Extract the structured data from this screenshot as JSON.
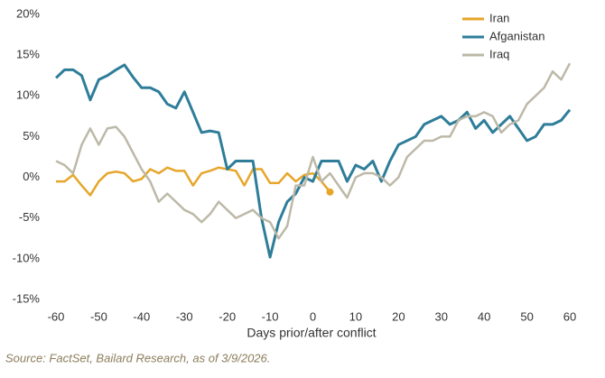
{
  "chart_data": {
    "type": "line",
    "x": [
      -60,
      -58,
      -56,
      -54,
      -52,
      -50,
      -48,
      -46,
      -44,
      -42,
      -40,
      -38,
      -36,
      -34,
      -32,
      -30,
      -28,
      -26,
      -24,
      -22,
      -20,
      -18,
      -16,
      -14,
      -12,
      -10,
      -8,
      -6,
      -4,
      -2,
      0,
      2,
      4,
      6,
      8,
      10,
      12,
      14,
      16,
      18,
      20,
      22,
      24,
      26,
      28,
      30,
      32,
      34,
      36,
      38,
      40,
      42,
      44,
      46,
      48,
      50,
      52,
      54,
      56,
      58,
      60
    ],
    "series": [
      {
        "name": "Iran",
        "color": "#e6a62a",
        "values": [
          -0.5,
          -0.5,
          0.3,
          -1,
          -2.2,
          -0.5,
          0.5,
          0.7,
          0.5,
          -0.5,
          -0.2,
          1,
          0.5,
          1.2,
          0.8,
          0.8,
          -1,
          0.5,
          0.8,
          1.2,
          1,
          0.8,
          -1,
          1,
          1,
          -0.7,
          -0.7,
          0.5,
          -0.5,
          0.3,
          0.5,
          -0.5,
          -1.8,
          null,
          null,
          null,
          null,
          null,
          null,
          null,
          null,
          null,
          null,
          null,
          null,
          null,
          null,
          null,
          null,
          null,
          null,
          null,
          null,
          null,
          null,
          null,
          null,
          null,
          null,
          null,
          null
        ]
      },
      {
        "name": "Afganistan",
        "color": "#2e7d99",
        "values": [
          12.2,
          13.2,
          13.2,
          12.5,
          9.5,
          12,
          12.5,
          13.2,
          13.8,
          12.3,
          11,
          11,
          10.5,
          9,
          8.5,
          10.5,
          8,
          5.5,
          5.7,
          5.5,
          1,
          2,
          2,
          2,
          -5,
          -9.8,
          -5.5,
          -3,
          -2,
          0,
          -0.5,
          2,
          2,
          2,
          -0.5,
          1.5,
          1,
          2,
          -0.5,
          2,
          4,
          4.5,
          5,
          6.5,
          7,
          7.5,
          6.5,
          7,
          8,
          6,
          7,
          5.5,
          6.5,
          7.5,
          6,
          4.5,
          5,
          6.5,
          6.5,
          7,
          8.3
        ]
      },
      {
        "name": "Iraq",
        "color": "#bdb9a8",
        "values": [
          2,
          1.5,
          0.5,
          4,
          6,
          4,
          6,
          6.2,
          5,
          3,
          1,
          -0.5,
          -3,
          -2,
          -3,
          -4,
          -4.5,
          -5.5,
          -4.5,
          -3,
          -4,
          -5,
          -4.5,
          -4,
          -5,
          -5.5,
          -7.5,
          -6,
          -1,
          -1,
          2.5,
          -0.5,
          0.5,
          -1,
          -2.5,
          0,
          0.5,
          0.5,
          0,
          -1,
          0,
          2.5,
          3.5,
          4.5,
          4.5,
          5,
          5,
          7,
          7.5,
          7.5,
          8,
          7.5,
          5.5,
          6.5,
          7,
          9,
          10,
          11,
          13,
          12,
          14
        ]
      }
    ],
    "xlim": [
      -60,
      60
    ],
    "xticks": [
      -60,
      -50,
      -40,
      -30,
      -20,
      -10,
      0,
      10,
      20,
      30,
      40,
      50,
      60
    ],
    "ylim": [
      -15,
      20
    ],
    "yticks": [
      {
        "value": -15,
        "label": "-15%"
      },
      {
        "value": -10,
        "label": "-10%"
      },
      {
        "value": -5,
        "label": "-5%"
      },
      {
        "value": 0,
        "label": "0%"
      },
      {
        "value": 5,
        "label": "5%"
      },
      {
        "value": 10,
        "label": "10%"
      },
      {
        "value": 15,
        "label": "15%"
      },
      {
        "value": 20,
        "label": "20%"
      }
    ],
    "x_label": "Days prior/after conflict",
    "source": "Source: FactSet, Bailard Research, as of 3/9/2026."
  }
}
